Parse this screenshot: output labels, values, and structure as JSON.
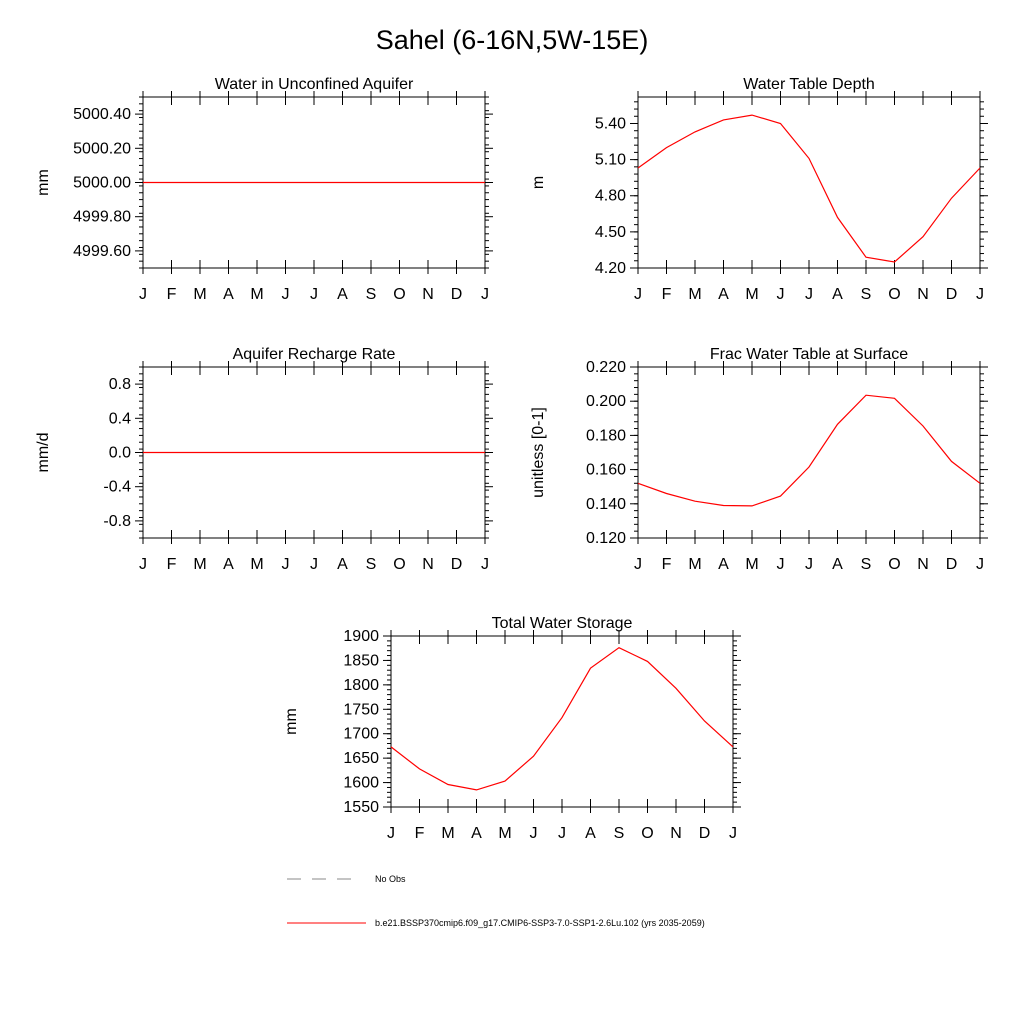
{
  "figure": {
    "title": "Sahel (6-16N,5W-15E)",
    "month_ticks": [
      "J",
      "F",
      "M",
      "A",
      "M",
      "J",
      "J",
      "A",
      "S",
      "O",
      "N",
      "D",
      "J"
    ]
  },
  "chart_data": [
    {
      "id": "unconfined",
      "type": "line",
      "title": "Water in Unconfined Aquifer",
      "xlabel": "",
      "ylabel": "mm",
      "x": [
        0,
        1,
        2,
        3,
        4,
        5,
        6,
        7,
        8,
        9,
        10,
        11,
        12
      ],
      "ylim": [
        4999.5,
        5000.5
      ],
      "yticks": [
        4999.6,
        4999.8,
        5000.0,
        5000.2,
        5000.4
      ],
      "ytick_labels": [
        "4999.60",
        "4999.80",
        "5000.00",
        "5000.20",
        "5000.40"
      ],
      "series": [
        {
          "values": [
            5000,
            5000,
            5000,
            5000,
            5000,
            5000,
            5000,
            5000,
            5000,
            5000,
            5000,
            5000,
            5000
          ],
          "color": "#ff0000"
        }
      ]
    },
    {
      "id": "wtd",
      "type": "line",
      "title": "Water Table Depth",
      "xlabel": "",
      "ylabel": "m",
      "x": [
        0,
        1,
        2,
        3,
        4,
        5,
        6,
        7,
        8,
        9,
        10,
        11,
        12
      ],
      "ylim": [
        4.2,
        5.62
      ],
      "yticks": [
        4.2,
        4.5,
        4.8,
        5.1,
        5.4
      ],
      "ytick_labels": [
        "4.20",
        "4.50",
        "4.80",
        "5.10",
        "5.40"
      ],
      "series": [
        {
          "values": [
            5.03,
            5.2,
            5.33,
            5.43,
            5.47,
            5.4,
            5.11,
            4.62,
            4.29,
            4.25,
            4.46,
            4.78,
            5.03
          ],
          "color": "#ff0000"
        }
      ]
    },
    {
      "id": "recharge",
      "type": "line",
      "title": "Aquifer Recharge Rate",
      "xlabel": "",
      "ylabel": "mm/d",
      "x": [
        0,
        1,
        2,
        3,
        4,
        5,
        6,
        7,
        8,
        9,
        10,
        11,
        12
      ],
      "ylim": [
        -1.0,
        1.0
      ],
      "yticks": [
        -0.8,
        -0.4,
        0.0,
        0.4,
        0.8
      ],
      "ytick_labels": [
        "-0.8",
        "-0.4",
        "0.0",
        "0.4",
        "0.8"
      ],
      "series": [
        {
          "values": [
            0,
            0,
            0,
            0,
            0,
            0,
            0,
            0,
            0,
            0,
            0,
            0,
            0
          ],
          "color": "#ff0000"
        }
      ]
    },
    {
      "id": "frac",
      "type": "line",
      "title": "Frac Water Table at Surface",
      "xlabel": "",
      "ylabel": "unitless [0-1]",
      "x": [
        0,
        1,
        2,
        3,
        4,
        5,
        6,
        7,
        8,
        9,
        10,
        11,
        12
      ],
      "ylim": [
        0.12,
        0.22
      ],
      "yticks": [
        0.12,
        0.14,
        0.16,
        0.18,
        0.2,
        0.22
      ],
      "ytick_labels": [
        "0.120",
        "0.140",
        "0.160",
        "0.180",
        "0.200",
        "0.220"
      ],
      "series": [
        {
          "values": [
            0.152,
            0.146,
            0.1415,
            0.139,
            0.1388,
            0.1445,
            0.1615,
            0.1865,
            0.2035,
            0.2017,
            0.1855,
            0.1648,
            0.152
          ],
          "color": "#ff0000"
        }
      ]
    },
    {
      "id": "tws",
      "type": "line",
      "title": "Total Water Storage",
      "xlabel": "",
      "ylabel": "mm",
      "x": [
        0,
        1,
        2,
        3,
        4,
        5,
        6,
        7,
        8,
        9,
        10,
        11,
        12
      ],
      "ylim": [
        1550,
        1900
      ],
      "yticks": [
        1550,
        1600,
        1650,
        1700,
        1750,
        1800,
        1850,
        1900
      ],
      "ytick_labels": [
        "1550",
        "1600",
        "1650",
        "1700",
        "1750",
        "1800",
        "1850",
        "1900"
      ],
      "series": [
        {
          "values": [
            1673,
            1628,
            1596,
            1585,
            1603,
            1654,
            1733,
            1834,
            1876,
            1848,
            1793,
            1726,
            1673
          ],
          "color": "#ff0000"
        }
      ]
    }
  ],
  "legend": {
    "items": [
      {
        "label": "No Obs",
        "style": "dashed",
        "color": "#888888"
      },
      {
        "label": "b.e21.BSSP370cmip6.f09_g17.CMIP6-SSP3-7.0-SSP1-2.6Lu.102 (yrs 2035-2059)",
        "style": "solid",
        "color": "#ff0000"
      }
    ]
  }
}
